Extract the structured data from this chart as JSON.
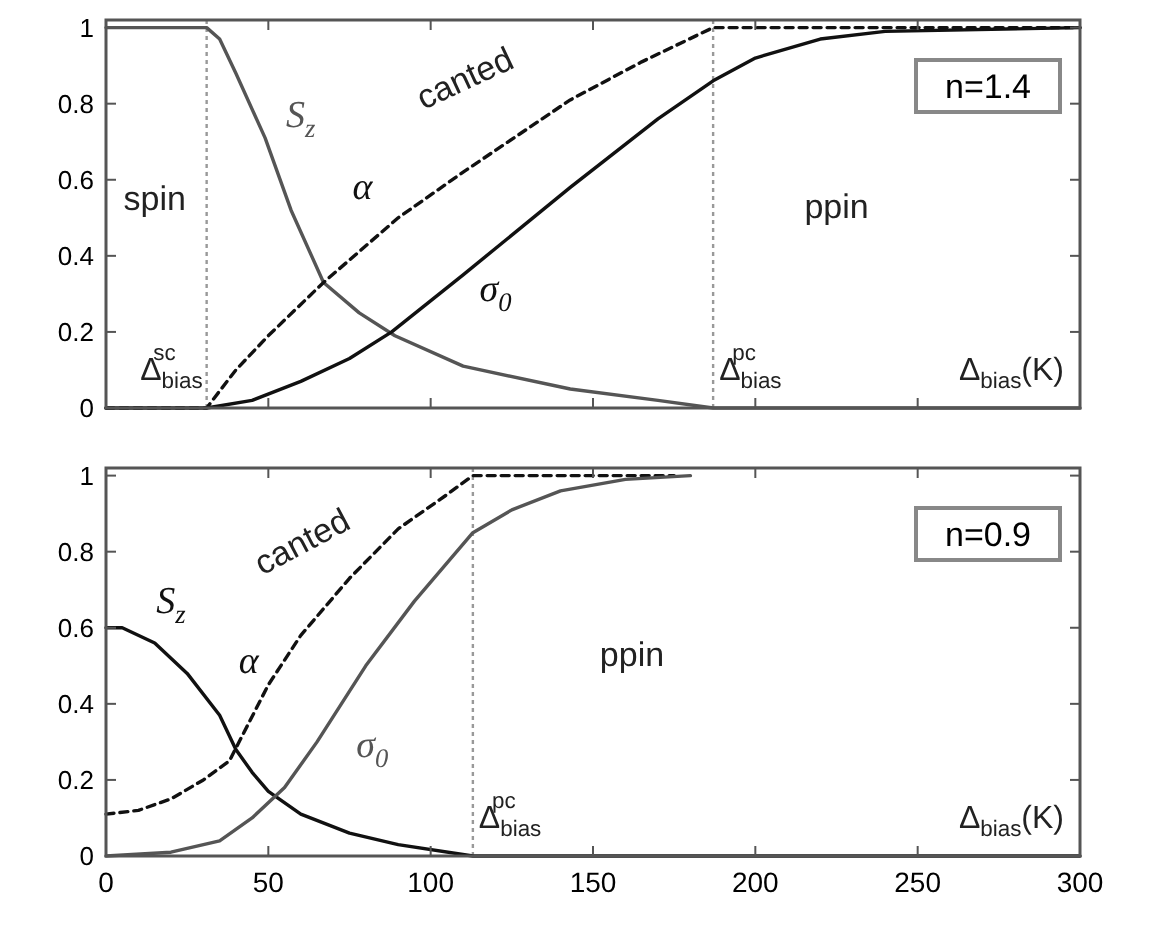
{
  "chart_data": [
    {
      "type": "line",
      "xlabel": "Δ$_{bias}$(K)",
      "xlim": [
        0,
        300
      ],
      "ylim": [
        0,
        1.02
      ],
      "xticks": [
        0,
        50,
        100,
        150,
        200,
        250,
        300
      ],
      "yticks": [
        0,
        0.2,
        0.4,
        0.6,
        0.8,
        1
      ],
      "tick_labels": "y",
      "grid": false,
      "series": [
        {
          "name": "S$_{z}$",
          "color": "#555555",
          "line_style": "solid",
          "x": [
            0,
            31,
            35,
            40,
            49,
            57,
            67,
            78,
            89,
            110,
            143,
            170,
            187,
            300
          ],
          "values": [
            1,
            1,
            0.97,
            0.88,
            0.71,
            0.52,
            0.33,
            0.25,
            0.19,
            0.11,
            0.05,
            0.02,
            0,
            0
          ]
        },
        {
          "name": "α",
          "color": "#111111",
          "line_style": "dashed",
          "x": [
            0,
            31,
            40,
            50,
            67,
            90,
            110,
            143,
            165,
            187,
            300
          ],
          "values": [
            0,
            0,
            0.1,
            0.19,
            0.33,
            0.5,
            0.62,
            0.81,
            0.91,
            1,
            1
          ]
        },
        {
          "name": "σ$_{0}$",
          "color": "#111111",
          "line_style": "solid",
          "x": [
            0,
            31,
            45,
            60,
            75,
            88,
            110,
            143,
            170,
            187,
            200,
            220,
            240,
            300
          ],
          "values": [
            0,
            0,
            0.02,
            0.07,
            0.13,
            0.2,
            0.35,
            0.58,
            0.76,
            0.86,
            0.92,
            0.97,
            0.99,
            1
          ]
        }
      ],
      "ref_lines": [
        {
          "axis": "x",
          "value": 31,
          "label": "Δ$_{bias}$$^{sc}$",
          "color": "#999999",
          "line_style": "dotted"
        },
        {
          "axis": "x",
          "value": 187,
          "label": "Δ$_{bias}$$^{pc}$",
          "color": "#999999",
          "line_style": "dotted"
        }
      ],
      "annotations": [
        "n=1.4",
        "spin",
        "canted",
        "ppin"
      ]
    },
    {
      "type": "line",
      "xlabel": "Δ$_{bias}$(K)",
      "xlim": [
        0,
        300
      ],
      "ylim": [
        0,
        1.02
      ],
      "xticks": [
        0,
        50,
        100,
        150,
        200,
        250,
        300
      ],
      "yticks": [
        0,
        0.2,
        0.4,
        0.6,
        0.8,
        1
      ],
      "grid": false,
      "series": [
        {
          "name": "S$_{z}$",
          "color": "#111111",
          "line_style": "solid",
          "x": [
            0,
            5,
            15,
            25,
            35,
            40,
            45,
            50,
            60,
            75,
            90,
            113,
            300
          ],
          "values": [
            0.6,
            0.6,
            0.56,
            0.48,
            0.37,
            0.28,
            0.22,
            0.17,
            0.11,
            0.06,
            0.03,
            0,
            0
          ]
        },
        {
          "name": "α",
          "color": "#111111",
          "line_style": "dashed",
          "x": [
            0,
            10,
            20,
            30,
            38,
            50,
            60,
            75,
            90,
            105,
            113,
            175
          ],
          "values": [
            0.11,
            0.12,
            0.15,
            0.2,
            0.25,
            0.45,
            0.58,
            0.73,
            0.86,
            0.95,
            1,
            1
          ]
        },
        {
          "name": "σ$_{0}$",
          "color": "#555555",
          "line_style": "solid",
          "x": [
            0,
            20,
            35,
            45,
            55,
            65,
            80,
            95,
            113,
            125,
            140,
            160,
            180
          ],
          "values": [
            0,
            0.01,
            0.04,
            0.1,
            0.18,
            0.3,
            0.5,
            0.67,
            0.85,
            0.91,
            0.96,
            0.99,
            1
          ]
        }
      ],
      "ref_lines": [
        {
          "axis": "x",
          "value": 113,
          "label": "Δ$_{bias}$$^{pc}$",
          "color": "#999999",
          "line_style": "dotted"
        }
      ],
      "annotations": [
        "n=0.9",
        "canted",
        "ppin"
      ]
    }
  ]
}
